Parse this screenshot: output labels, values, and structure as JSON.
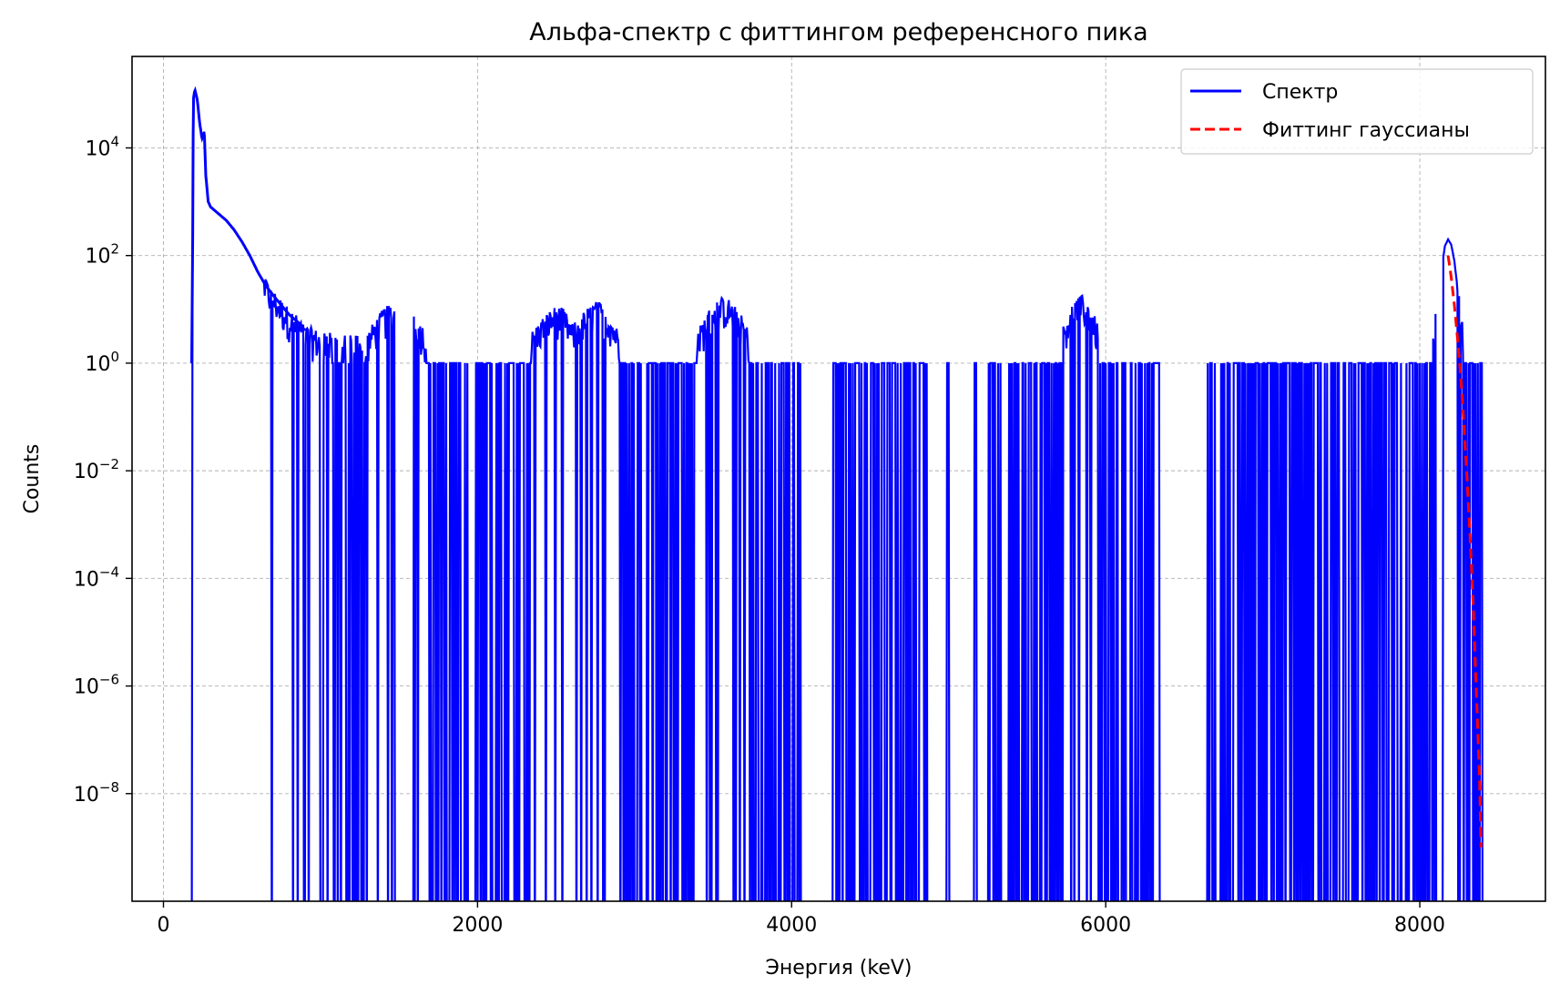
{
  "chart_data": {
    "type": "line",
    "title": "Альфа-спектр с фиттингом референсного пика",
    "xlabel": "Энергия (keV)",
    "ylabel": "Counts",
    "xlim": [
      -200,
      8800
    ],
    "ylim_log10": [
      -10.0,
      5.7
    ],
    "y_scale": "log",
    "grid": true,
    "legend_position": "top-right",
    "x_ticks": [
      {
        "value": 0,
        "label": "0"
      },
      {
        "value": 2000,
        "label": "2000"
      },
      {
        "value": 4000,
        "label": "4000"
      },
      {
        "value": 6000,
        "label": "6000"
      },
      {
        "value": 8000,
        "label": "8000"
      }
    ],
    "y_ticks": [
      {
        "exp": 4,
        "base": "10",
        "sup": "4"
      },
      {
        "exp": 2,
        "base": "10",
        "sup": "2"
      },
      {
        "exp": 0,
        "base": "10",
        "sup": "0"
      },
      {
        "exp": -2,
        "base": "10",
        "sup": "−2"
      },
      {
        "exp": -4,
        "base": "10",
        "sup": "−4"
      },
      {
        "exp": -6,
        "base": "10",
        "sup": "−6"
      },
      {
        "exp": -8,
        "base": "10",
        "sup": "−8"
      }
    ],
    "series": [
      {
        "name": "Спектр",
        "color": "#0000ff",
        "style": "solid",
        "envelope": {
          "x": [
            180,
            185,
            190,
            200,
            215,
            230,
            245,
            260,
            270,
            285,
            300,
            350,
            400,
            450,
            500,
            550,
            600,
            650,
            700,
            750,
            800,
            850,
            880,
            900,
            1000,
            1100,
            1200,
            1300,
            1350,
            1400,
            1450,
            1500,
            1530,
            1560,
            1600,
            1650,
            1700,
            1800,
            1900,
            2000,
            2200,
            2300,
            2400,
            2450,
            2500,
            2550,
            2600,
            2650,
            2700,
            2750,
            2800,
            2850,
            2900,
            2950,
            3000,
            3100,
            3200,
            3300,
            3400,
            3450,
            3500,
            3550,
            3600,
            3650,
            3700,
            3750,
            3800,
            3900,
            4000,
            5600,
            5700,
            5750,
            5800,
            5850,
            5900,
            5950,
            6000,
            7400,
            7450,
            7500,
            7550,
            7600,
            7650,
            7700,
            7750,
            7800,
            7850,
            7900,
            8000,
            8050,
            8080,
            8100,
            8120,
            8140,
            8160,
            8180,
            8200,
            8220,
            8240,
            8260,
            8280,
            8300,
            8320,
            8340,
            8360,
            8380,
            8400
          ],
          "y": [
            1,
            50,
            80000,
            120000,
            80000,
            30000,
            15000,
            20000,
            3000,
            1000,
            800,
            600,
            450,
            300,
            180,
            100,
            50,
            28,
            18,
            12,
            8,
            6,
            5,
            4,
            3,
            2.5,
            2.5,
            3,
            5,
            8,
            10,
            9,
            14,
            10,
            8,
            4,
            2,
            1,
            1,
            1,
            1,
            2,
            5,
            7,
            9,
            8,
            4,
            6,
            8,
            11,
            10,
            6,
            3,
            1,
            1,
            1,
            1,
            1,
            3,
            6,
            10,
            13,
            12,
            8,
            5,
            2,
            1,
            1,
            1,
            1,
            2,
            6,
            12,
            14,
            10,
            4,
            1,
            1,
            1,
            1.5,
            2,
            2.5,
            2.5,
            2,
            1.5,
            1,
            1,
            1,
            1,
            1.5,
            3,
            8,
            20,
            60,
            150,
            200,
            160,
            80,
            25,
            8,
            3,
            2,
            1,
            1,
            1,
            1,
            1
          ]
        }
      },
      {
        "name": "Фиттинг гауссианы",
        "color": "#ff0000",
        "style": "dashed",
        "x": [
          8180,
          8200,
          8220,
          8240,
          8260,
          8280,
          8300,
          8320,
          8340,
          8360,
          8380,
          8390
        ],
        "y": [
          100,
          40,
          12,
          3,
          0.6,
          0.08,
          0.008,
          0.0006,
          3e-05,
          8e-07,
          2e-08,
          1e-09
        ]
      }
    ]
  }
}
